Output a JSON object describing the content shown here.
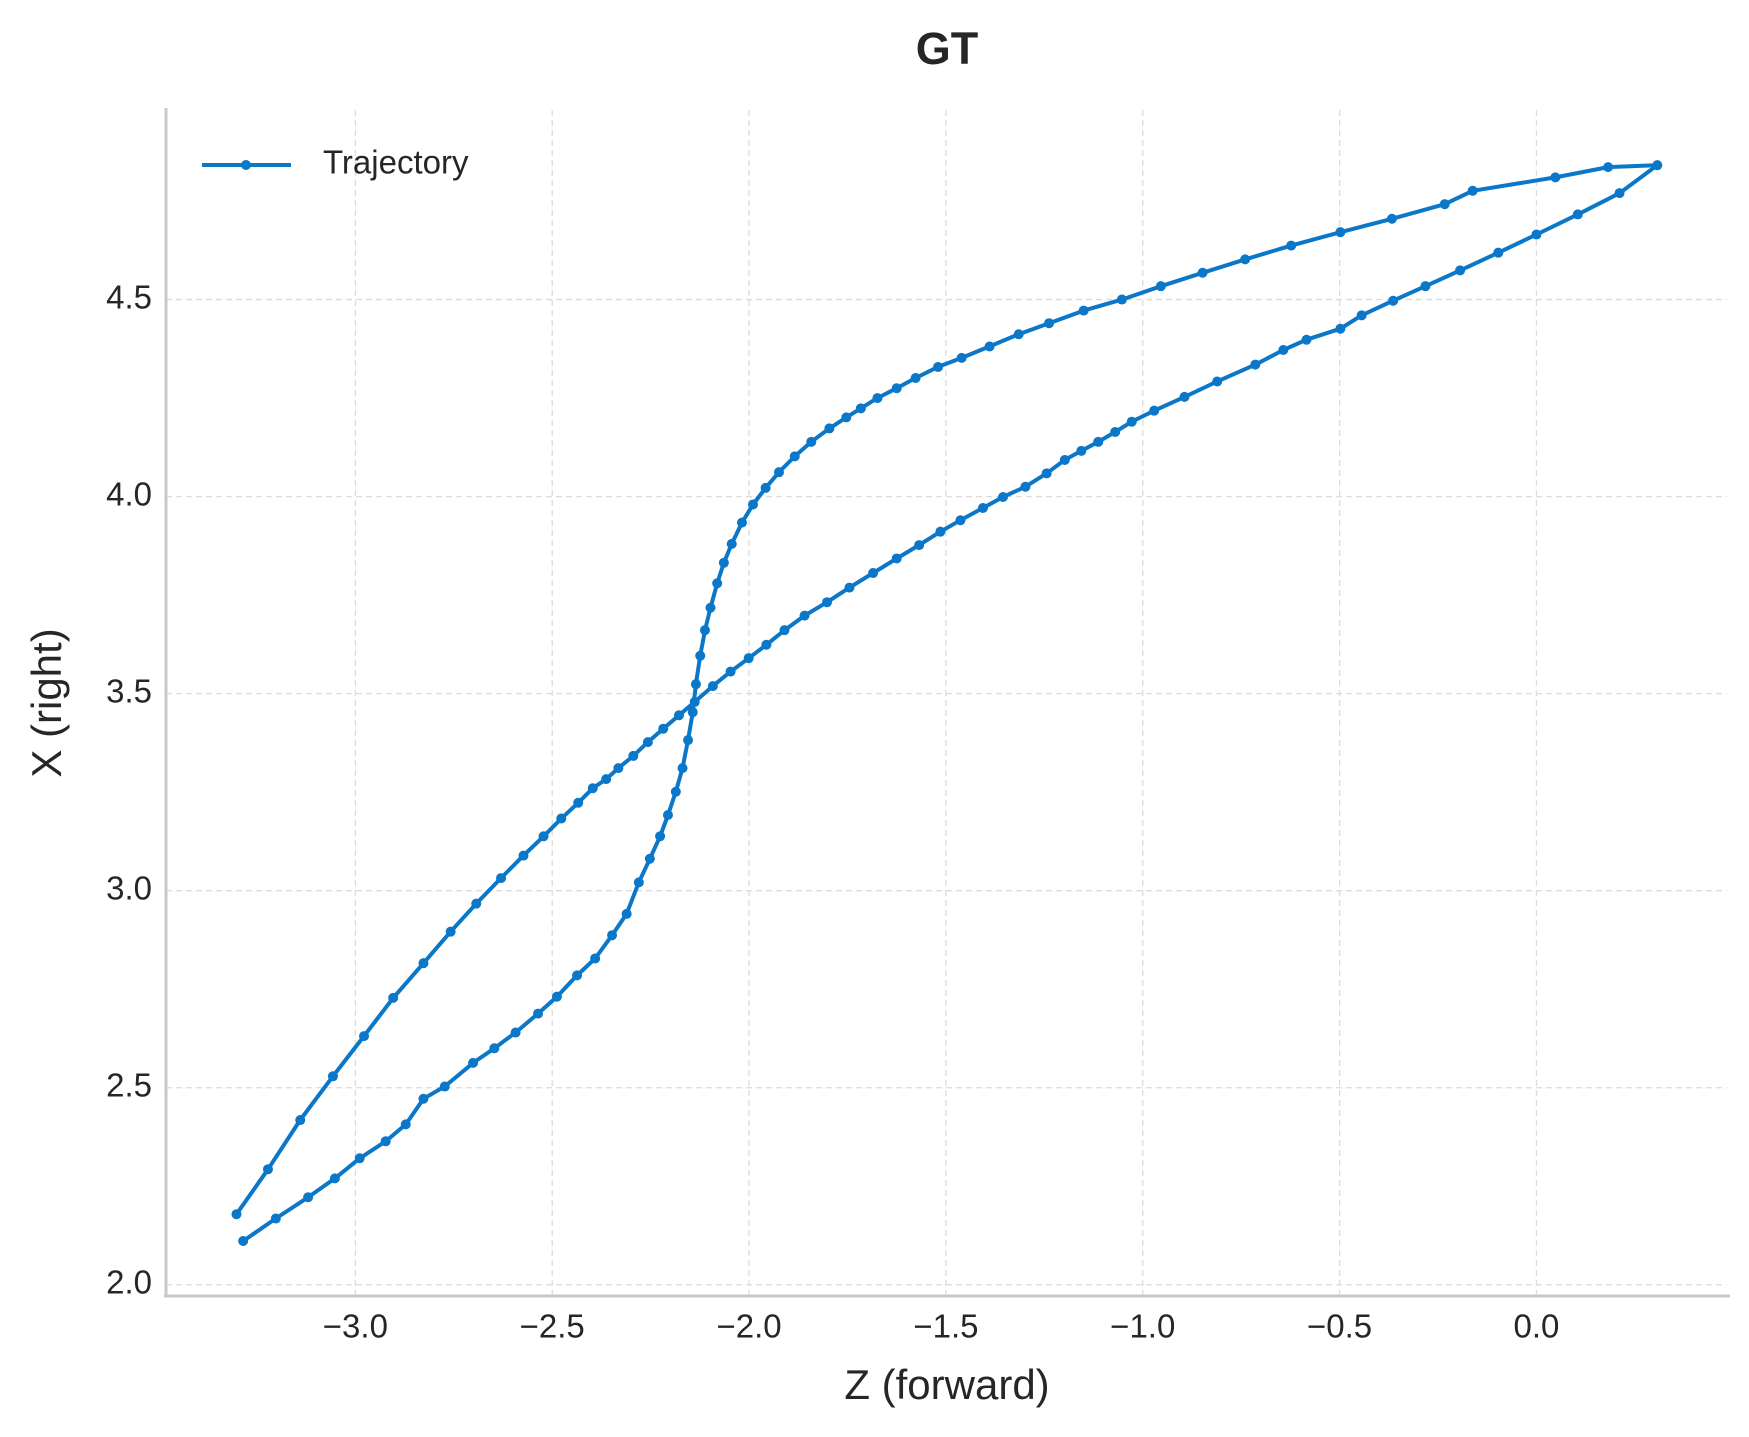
{
  "chart_data": {
    "type": "line",
    "title": "GT",
    "x_label": "Z (forward)",
    "y_label": "X (right)",
    "x": [
      -3.302,
      -3.222,
      -3.14,
      -3.057,
      -2.978,
      -2.904,
      -2.827,
      -2.758,
      -2.693,
      -2.63,
      -2.573,
      -2.522,
      -2.477,
      -2.434,
      -2.397,
      -2.363,
      -2.332,
      -2.294,
      -2.257,
      -2.218,
      -2.178,
      -2.138,
      -2.092,
      -2.047,
      -2.001,
      -1.956,
      -1.91,
      -1.859,
      -1.802,
      -1.745,
      -1.685,
      -1.625,
      -1.568,
      -1.514,
      -1.463,
      -1.406,
      -1.355,
      -1.298,
      -1.244,
      -1.198,
      -1.156,
      -1.113,
      -1.07,
      -1.028,
      -0.971,
      -0.894,
      -0.811,
      -0.714,
      -0.643,
      -0.584,
      -0.498,
      -0.444,
      -0.364,
      -0.282,
      -0.194,
      -0.097,
      0.0,
      0.105,
      0.211,
      0.307,
      0.182,
      0.048,
      -0.162,
      -0.233,
      -0.367,
      -0.498,
      -0.623,
      -0.74,
      -0.848,
      -0.954,
      -1.053,
      -1.15,
      -1.238,
      -1.315,
      -1.389,
      -1.46,
      -1.52,
      -1.577,
      -1.625,
      -1.674,
      -1.716,
      -1.753,
      -1.796,
      -1.842,
      -1.884,
      -1.924,
      -1.958,
      -1.99,
      -2.018,
      -2.044,
      -2.064,
      -2.081,
      -2.098,
      -2.112,
      -2.124,
      -2.135,
      -2.143,
      -2.155,
      -2.169,
      -2.186,
      -2.206,
      -2.226,
      -2.252,
      -2.28,
      -2.311,
      -2.348,
      -2.391,
      -2.437,
      -2.488,
      -2.536,
      -2.593,
      -2.647,
      -2.701,
      -2.773,
      -2.827,
      -2.872,
      -2.923,
      -2.989,
      -3.052,
      -3.12,
      -3.202,
      -3.285
    ],
    "series": [
      {
        "name": "Trajectory",
        "color": "#0a77c8",
        "values": [
          2.179,
          2.293,
          2.418,
          2.529,
          2.631,
          2.728,
          2.816,
          2.896,
          2.967,
          3.032,
          3.089,
          3.138,
          3.183,
          3.223,
          3.26,
          3.283,
          3.311,
          3.342,
          3.377,
          3.411,
          3.445,
          3.479,
          3.519,
          3.556,
          3.59,
          3.624,
          3.661,
          3.698,
          3.732,
          3.769,
          3.806,
          3.843,
          3.877,
          3.911,
          3.94,
          3.971,
          3.999,
          4.025,
          4.059,
          4.093,
          4.116,
          4.139,
          4.164,
          4.19,
          4.218,
          4.253,
          4.292,
          4.335,
          4.372,
          4.398,
          4.426,
          4.46,
          4.497,
          4.534,
          4.574,
          4.619,
          4.665,
          4.716,
          4.77,
          4.841,
          4.836,
          4.81,
          4.776,
          4.742,
          4.705,
          4.671,
          4.637,
          4.602,
          4.568,
          4.534,
          4.5,
          4.472,
          4.44,
          4.412,
          4.381,
          4.352,
          4.329,
          4.301,
          4.275,
          4.25,
          4.224,
          4.201,
          4.173,
          4.139,
          4.102,
          4.062,
          4.022,
          3.98,
          3.934,
          3.88,
          3.832,
          3.78,
          3.718,
          3.661,
          3.596,
          3.524,
          3.453,
          3.382,
          3.311,
          3.251,
          3.192,
          3.138,
          3.081,
          3.021,
          2.941,
          2.887,
          2.828,
          2.785,
          2.731,
          2.688,
          2.64,
          2.6,
          2.563,
          2.503,
          2.472,
          2.407,
          2.364,
          2.321,
          2.27,
          2.222,
          2.168,
          2.111
        ]
      }
    ],
    "xlim": [
      -3.481,
      0.484
    ],
    "ylim": [
      1.974,
      4.981
    ],
    "xticks": [
      {
        "value": -3,
        "label": "−3.0"
      },
      {
        "value": -2.5,
        "label": "−2.5"
      },
      {
        "value": -2,
        "label": "−2.0"
      },
      {
        "value": -1.5,
        "label": "−1.5"
      },
      {
        "value": -1,
        "label": "−1.0"
      },
      {
        "value": -0.5,
        "label": "−0.5"
      },
      {
        "value": 0,
        "label": "0.0"
      }
    ],
    "yticks": [
      {
        "value": 2,
        "label": "2.0"
      },
      2.5,
      {
        "value": 3,
        "label": "3.0"
      },
      3.5,
      {
        "value": 4,
        "label": "4.0"
      },
      4.5
    ],
    "grid": true,
    "legend": "upper left"
  }
}
